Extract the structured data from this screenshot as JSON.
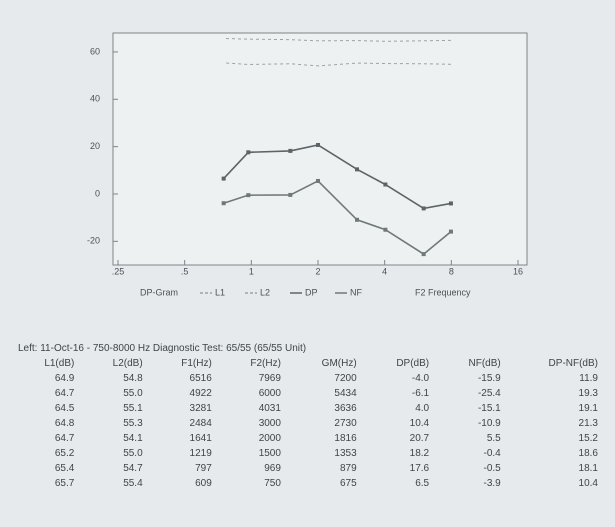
{
  "chart_data": {
    "type": "line",
    "x": [
      7.969,
      6,
      4.031,
      3,
      2,
      1.5,
      0.969,
      0.75
    ],
    "series": [
      {
        "name": "L1",
        "color": "#9aa3a6",
        "dash": true,
        "values": [
          64.9,
          64.7,
          64.5,
          64.8,
          64.7,
          65.2,
          65.4,
          65.7
        ]
      },
      {
        "name": "L2",
        "color": "#9aa3a6",
        "dash": true,
        "values": [
          54.8,
          55.0,
          55.1,
          55.3,
          54.1,
          55.0,
          54.7,
          55.4
        ]
      },
      {
        "name": "DP",
        "color": "#5b6467",
        "values": [
          -4.0,
          -6.1,
          4.0,
          10.4,
          20.7,
          18.2,
          17.6,
          6.5
        ]
      },
      {
        "name": "NF",
        "color": "#6f787b",
        "values": [
          -15.9,
          -25.4,
          -15.1,
          -10.9,
          5.5,
          -0.4,
          -0.5,
          -3.9
        ]
      }
    ],
    "legend_title": "DP-Gram",
    "x_label": "F2 Frequency",
    "xlim": [
      0.25,
      16
    ],
    "xticks": [
      {
        "value": 0.25,
        "label": ".25"
      },
      {
        "value": 0.5,
        "label": ".5"
      },
      1,
      2,
      4,
      8,
      16
    ],
    "ylim": [
      -30,
      68
    ],
    "yticks": [
      -20,
      0,
      20,
      40,
      60
    ],
    "log_x": true,
    "grid": false
  },
  "table": {
    "caption": "Left: 11-Oct-16 - 750-8000 Hz Diagnostic Test: 65/55 (65/55 Unit)",
    "header": [
      "L1(dB)",
      "L2(dB)",
      "F1(Hz)",
      "F2(Hz)",
      "GM(Hz)",
      "DP(dB)",
      "NF(dB)",
      "DP-NF(dB)"
    ],
    "rows": [
      [
        "64.9",
        "54.8",
        "6516",
        "7969",
        "7200",
        "-4.0",
        "-15.9",
        "11.9"
      ],
      [
        "64.7",
        "55.0",
        "4922",
        "6000",
        "5434",
        "-6.1",
        "-25.4",
        "19.3"
      ],
      [
        "64.5",
        "55.1",
        "3281",
        "4031",
        "3636",
        "4.0",
        "-15.1",
        "19.1"
      ],
      [
        "64.8",
        "55.3",
        "2484",
        "3000",
        "2730",
        "10.4",
        "-10.9",
        "21.3"
      ],
      [
        "64.7",
        "54.1",
        "1641",
        "2000",
        "1816",
        "20.7",
        "5.5",
        "15.2"
      ],
      [
        "65.2",
        "55.0",
        "1219",
        "1500",
        "1353",
        "18.2",
        "-0.4",
        "18.6"
      ],
      [
        "65.4",
        "54.7",
        "797",
        "969",
        "879",
        "17.6",
        "-0.5",
        "18.1"
      ],
      [
        "65.7",
        "55.4",
        "609",
        "750",
        "675",
        "6.5",
        "-3.9",
        "10.4"
      ]
    ]
  }
}
